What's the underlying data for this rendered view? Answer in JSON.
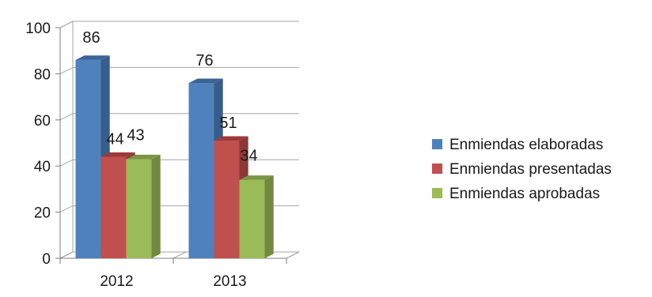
{
  "chart_data": {
    "type": "bar",
    "categories": [
      "2012",
      "2013"
    ],
    "series": [
      {
        "name": "Enmiendas elaboradas",
        "values": [
          86,
          76
        ]
      },
      {
        "name": "Enmiendas presentadas",
        "values": [
          44,
          51
        ]
      },
      {
        "name": "Enmiendas aprobadas",
        "values": [
          43,
          34
        ]
      }
    ],
    "data_labels": [
      "86",
      "44",
      "43",
      "76",
      "51",
      "34"
    ],
    "yticks": [
      "0",
      "20",
      "40",
      "60",
      "80",
      "100"
    ],
    "ylim": [
      0,
      100
    ],
    "title": "",
    "xlabel": "",
    "ylabel": "",
    "grid": true,
    "legend_position": "right",
    "style": "3d-clustered-column",
    "colors": {
      "series": [
        "#4f81bd",
        "#c0504d",
        "#9bbb59"
      ],
      "series_side": [
        "#385d8a",
        "#8c3836",
        "#71893f"
      ],
      "series_top": [
        "#3a6496",
        "#9a3b39",
        "#7a9546"
      ],
      "grid": "#a6a6a6",
      "axis": "#7f7f7f"
    }
  }
}
